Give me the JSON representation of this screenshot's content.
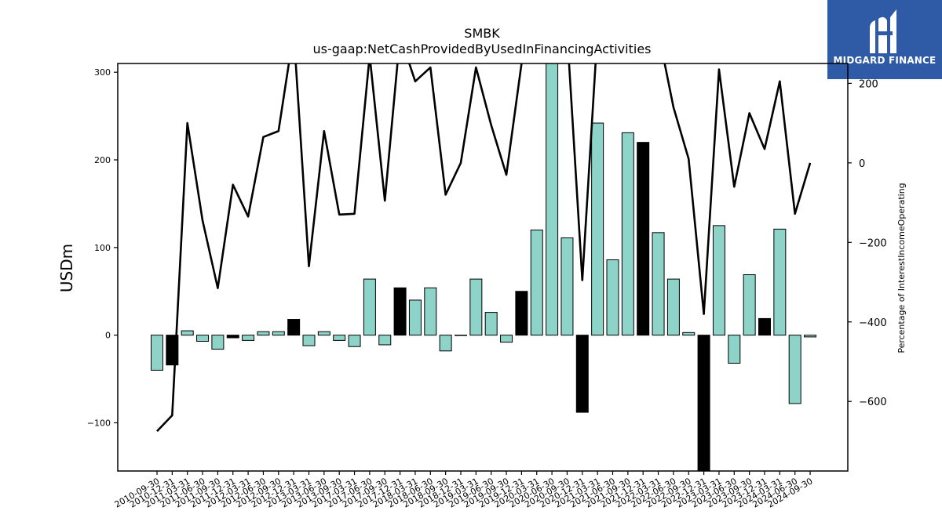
{
  "logo": {
    "text": "MIDGARD FINANCE",
    "icon": "midgard-m-logo-icon",
    "color": "#2f5aa6"
  },
  "chart_data": {
    "type": "bar",
    "title": "SMBK",
    "subtitle": "us-gaap:NetCashProvidedByUsedInFinancingActivities",
    "ylabel": "USDm",
    "ylabel_right": "Percentage of InterestIncomeOperating",
    "ylim": [
      -155,
      310
    ],
    "ylim_right": [
      -775,
      250
    ],
    "yticks": [
      -100,
      0,
      100,
      200,
      300
    ],
    "yticks_right": [
      -600,
      -400,
      -200,
      0,
      200
    ],
    "bar_colors": {
      "positive_trend": "#8dd3c7",
      "highlight": "#000000"
    },
    "line_color": "#000000",
    "categories": [
      "2010-09-30",
      "2010-12-31",
      "2011-03-31",
      "2011-06-30",
      "2011-09-30",
      "2011-12-31",
      "2012-03-31",
      "2012-06-30",
      "2012-09-30",
      "2012-12-31",
      "2013-03-31",
      "2013-06-30",
      "2013-09-30",
      "2017-03-31",
      "2017-06-30",
      "2017-09-30",
      "2017-12-31",
      "2018-03-31",
      "2018-06-30",
      "2018-09-30",
      "2018-12-31",
      "2019-03-31",
      "2019-06-30",
      "2019-09-30",
      "2019-12-31",
      "2020-03-31",
      "2020-06-30",
      "2020-09-30",
      "2020-12-31",
      "2021-03-31",
      "2021-06-30",
      "2021-09-30",
      "2021-12-31",
      "2022-03-31",
      "2022-06-30",
      "2022-09-30",
      "2022-12-31",
      "2023-03-31",
      "2023-06-30",
      "2023-09-30",
      "2023-12-31",
      "2024-03-31",
      "2024-06-30",
      "2024-09-30"
    ],
    "series": [
      {
        "type": "bar",
        "values": [
          -40,
          -34,
          5,
          -7,
          -16,
          -3,
          -6,
          4,
          4,
          18,
          -12,
          4,
          -6,
          -13,
          64,
          -11,
          54,
          40,
          54,
          -18,
          0,
          64,
          26,
          -8,
          50,
          120,
          310,
          111,
          -88,
          242,
          86,
          231,
          220,
          117,
          64,
          3,
          -155,
          125,
          -32,
          69,
          19,
          121,
          -78,
          -2
        ],
        "highlight": [
          false,
          true,
          false,
          false,
          false,
          true,
          false,
          false,
          false,
          true,
          false,
          false,
          false,
          false,
          false,
          false,
          true,
          false,
          false,
          false,
          false,
          false,
          false,
          false,
          true,
          false,
          false,
          false,
          true,
          false,
          false,
          false,
          true,
          false,
          false,
          false,
          true,
          false,
          false,
          false,
          true,
          false,
          false,
          false
        ]
      },
      {
        "type": "line",
        "axis": "right",
        "values": [
          -675,
          -635,
          100,
          -145,
          -315,
          -55,
          -135,
          65,
          80,
          330,
          -260,
          80,
          -130,
          -128,
          270,
          -95,
          320,
          205,
          240,
          -80,
          0,
          240,
          95,
          -30,
          250,
          270,
          330,
          330,
          -295,
          330,
          330,
          330,
          330,
          330,
          140,
          10,
          -380,
          235,
          -60,
          125,
          35,
          205,
          -128,
          0
        ]
      }
    ]
  }
}
